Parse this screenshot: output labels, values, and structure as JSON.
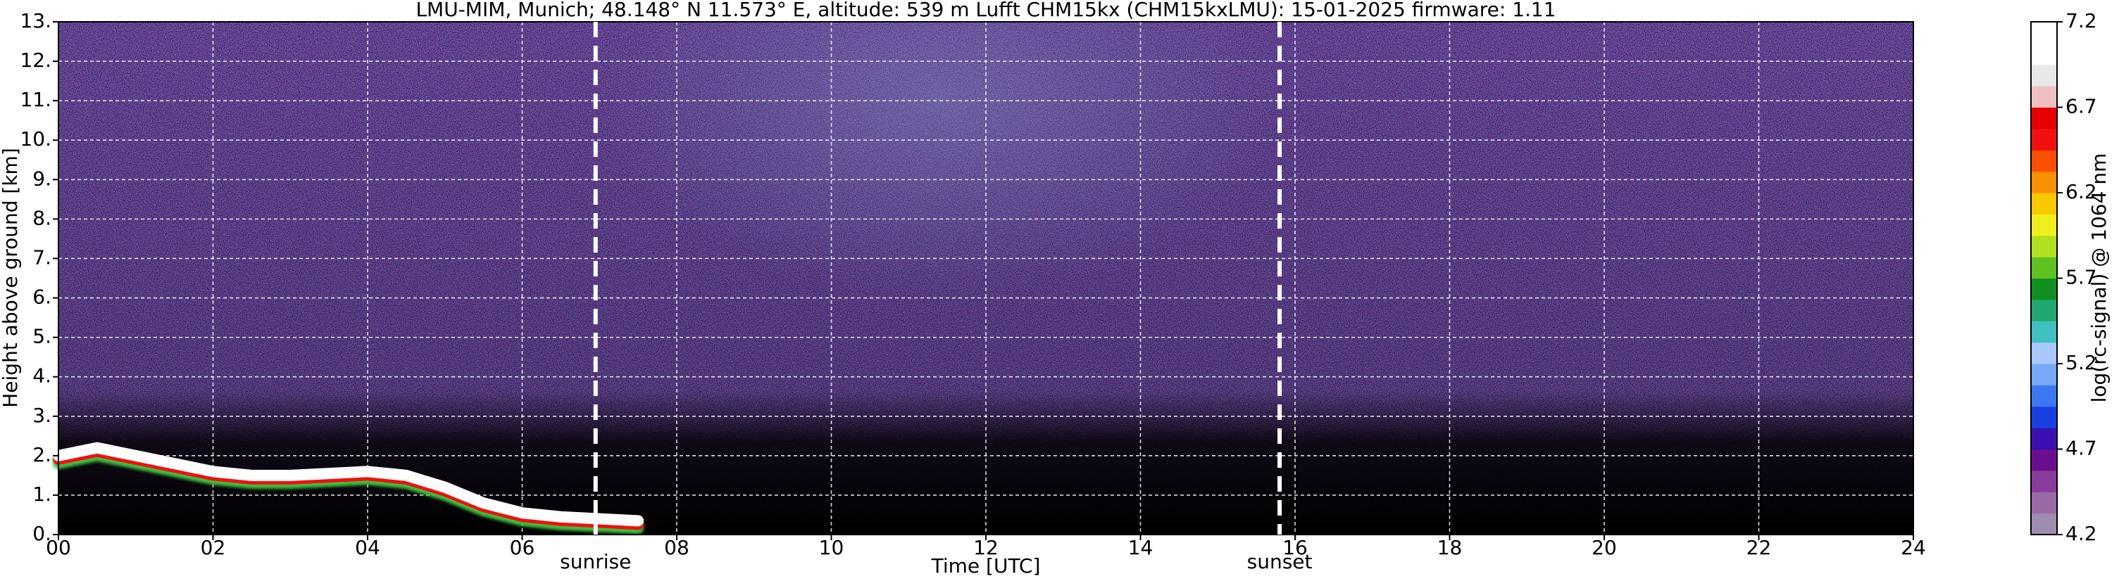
{
  "chart_data": {
    "type": "heatmap",
    "title": "LMU-MIM, Munich; 48.148° N 11.573° E, altitude: 539 m    Lufft CHM15kx (CHM15kxLMU): 15-01-2025    firmware: 1.11",
    "x_label": "Time [UTC]",
    "y_label": "Height above ground [km]",
    "xlim": [
      0,
      24
    ],
    "ylim": [
      0,
      13
    ],
    "xticks": [
      {
        "value": 0,
        "label": "00"
      },
      {
        "value": 2,
        "label": "02"
      },
      {
        "value": 4,
        "label": "04"
      },
      {
        "value": 6,
        "label": "06"
      },
      {
        "value": 8,
        "label": "08"
      },
      {
        "value": 10,
        "label": "10"
      },
      {
        "value": 12,
        "label": "12"
      },
      {
        "value": 14,
        "label": "14"
      },
      {
        "value": 16,
        "label": "16"
      },
      {
        "value": 18,
        "label": "18"
      },
      {
        "value": 20,
        "label": "20"
      },
      {
        "value": 22,
        "label": "22"
      },
      {
        "value": 24,
        "label": "24"
      }
    ],
    "yticks": [
      {
        "value": 0,
        "label": "0."
      },
      {
        "value": 1,
        "label": "1."
      },
      {
        "value": 2,
        "label": "2."
      },
      {
        "value": 3,
        "label": "3."
      },
      {
        "value": 4,
        "label": "4."
      },
      {
        "value": 5,
        "label": "5."
      },
      {
        "value": 6,
        "label": "6."
      },
      {
        "value": 7,
        "label": "7."
      },
      {
        "value": 8,
        "label": "8."
      },
      {
        "value": 9,
        "label": "9."
      },
      {
        "value": 10,
        "label": "10."
      },
      {
        "value": 11,
        "label": "11."
      },
      {
        "value": 12,
        "label": "12."
      },
      {
        "value": 13,
        "label": "13."
      }
    ],
    "grid": true,
    "series": [
      {
        "color": "#ffffff",
        "x": [
          0,
          0.5,
          1,
          1.5,
          2,
          2.5,
          3,
          3.5,
          4,
          4.5,
          5,
          5.5,
          6,
          6.5,
          7,
          7.5
        ],
        "values": [
          2.0,
          2.2,
          2.0,
          1.8,
          1.6,
          1.5,
          1.5,
          1.55,
          1.6,
          1.5,
          1.2,
          0.8,
          0.55,
          0.45,
          0.4,
          0.35
        ]
      }
    ],
    "annotations": [
      {
        "label": "sunrise",
        "x": 6.95
      },
      {
        "label": "sunset",
        "x": 15.8
      }
    ],
    "colorbar": {
      "label": "log(rc-signal) @ 1064 nm",
      "lim": [
        4.2,
        7.2
      ],
      "ticks": [
        4.2,
        4.7,
        5.2,
        5.7,
        6.2,
        6.7,
        7.2
      ],
      "colors": [
        "#a08cb0",
        "#9a6aa8",
        "#8a3c9c",
        "#6a0e90",
        "#3a10b0",
        "#1840e0",
        "#3c78f0",
        "#78a8f8",
        "#a8c8fc",
        "#40c0c0",
        "#20a870",
        "#109020",
        "#60c020",
        "#b0e020",
        "#f0f020",
        "#f8c800",
        "#f89000",
        "#f85000",
        "#f01010",
        "#e80000",
        "#f0c0c0",
        "#e8e8e8",
        "#ffffff",
        "#ffffff"
      ]
    }
  }
}
